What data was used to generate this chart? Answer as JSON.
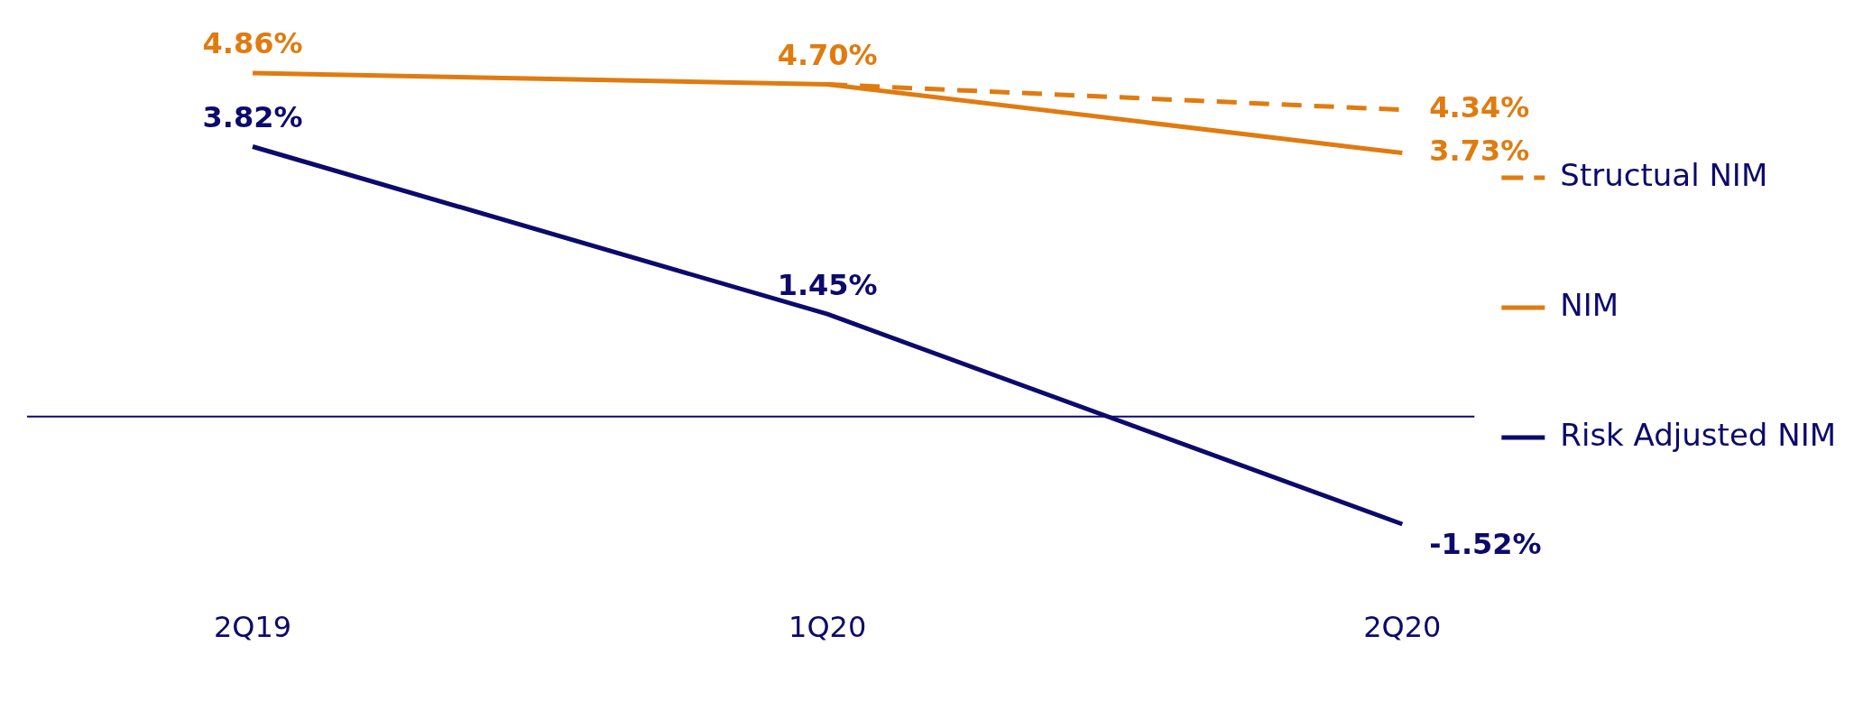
{
  "chart_data": {
    "type": "line",
    "categories": [
      "2Q19",
      "1Q20",
      "2Q20"
    ],
    "series": [
      {
        "name": "Structual NIM",
        "color": "#e07b10",
        "line_style": "dashed",
        "values": [
          null,
          4.7,
          4.34
        ],
        "value_labels": [
          null,
          null,
          "4.34%"
        ]
      },
      {
        "name": "NIM",
        "color": "#e07b10",
        "line_style": "solid",
        "values": [
          4.86,
          4.7,
          3.73
        ],
        "value_labels": [
          "4.86%",
          "4.70%",
          "3.73%"
        ]
      },
      {
        "name": "Risk Adjusted NIM",
        "color": "#0c0a6b",
        "line_style": "solid",
        "values": [
          3.82,
          1.45,
          -1.52
        ],
        "value_labels": [
          "3.82%",
          "1.45%",
          "-1.52%"
        ]
      }
    ],
    "ref_lines": [
      {
        "axis": "y",
        "value": 0,
        "color": "#0c0a6b"
      }
    ],
    "grid": false,
    "legend": "right",
    "marker": "none",
    "tick_labels": "x"
  }
}
